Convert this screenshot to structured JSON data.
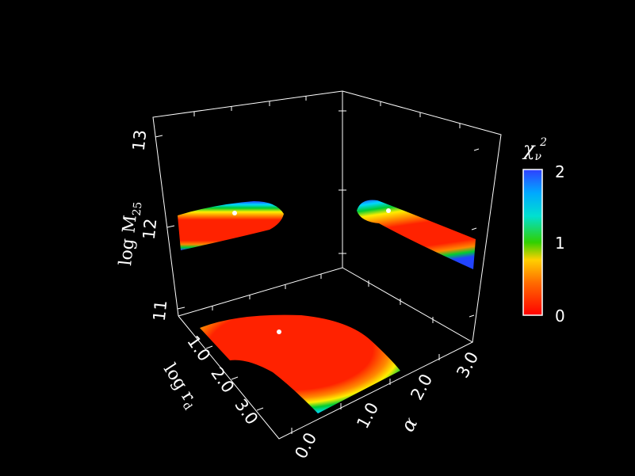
{
  "chart_data": {
    "type": "heatmap",
    "projection": "3d-box-with-projected-contours",
    "axes": {
      "x": {
        "label_main": "log r",
        "label_sub": "d",
        "ticks": [
          "1.0",
          "2.0",
          "3.0"
        ],
        "range": [
          0.5,
          3.5
        ]
      },
      "y": {
        "label": "α",
        "ticks": [
          "0.0",
          "1.0",
          "2.0",
          "3.0"
        ],
        "range": [
          0.0,
          3.3
        ]
      },
      "z": {
        "label_main": "log M",
        "label_sub": "25",
        "ticks": [
          "11",
          "12",
          "13"
        ],
        "range": [
          10.9,
          13.2
        ]
      }
    },
    "colorbar": {
      "label_main": "χ",
      "label_sub": "ν",
      "label_sup": "2",
      "ticks": [
        "0",
        "1",
        "2"
      ],
      "range": [
        0,
        2
      ],
      "colors": [
        "#ff0000",
        "#ff9d00",
        "#ffff00",
        "#00d000",
        "#00e8ff",
        "#3050ff"
      ]
    },
    "best_fit": {
      "log_rd": 1.5,
      "alpha": 0.6,
      "log_M25": 12.15
    },
    "panels": [
      {
        "name": "floor",
        "plane": "log_rd-alpha"
      },
      {
        "name": "left-wall",
        "plane": "log_rd-log_M25"
      },
      {
        "name": "right-wall",
        "plane": "alpha-log_M25"
      }
    ]
  }
}
